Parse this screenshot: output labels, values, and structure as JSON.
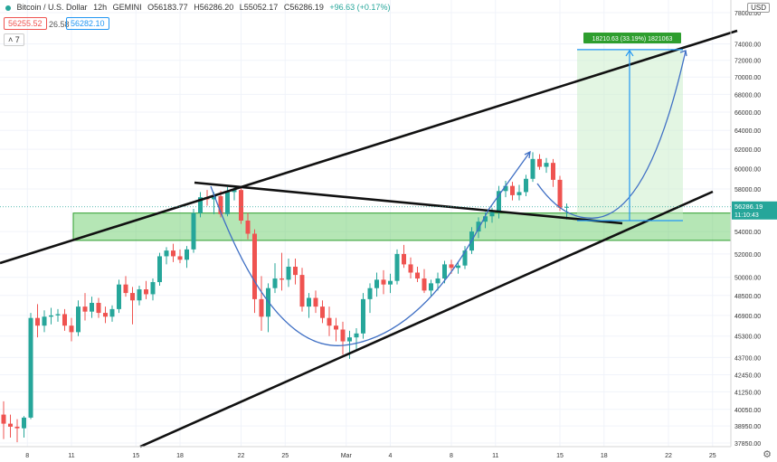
{
  "header": {
    "symbol": "Bitcoin / U.S. Dollar",
    "interval": "12h",
    "exchange": "GEMINI",
    "open": "O56183.77",
    "high": "H56286.20",
    "low": "L55052.17",
    "close": "C56286.19",
    "change": "+96.63 (+0.17%)"
  },
  "order": {
    "sell": "56255.52",
    "spread": "26.58",
    "buy": "56282.10"
  },
  "indicators_badge": "7",
  "currency_badge": "USD",
  "colors": {
    "up": "#26a69a",
    "down": "#ef5350",
    "zone": "#5cc75c",
    "curve": "#3f6fc4",
    "measure": "#2196f3"
  },
  "chart_data": {
    "type": "candlestick",
    "x_ticks": [
      "8",
      "11",
      "15",
      "18",
      "22",
      "25",
      "Mar",
      "4",
      "8",
      "11",
      "15",
      "18",
      "22",
      "25"
    ],
    "y_ticks": [
      "78000.00",
      "74000.00",
      "72000.00",
      "70000.00",
      "68000.00",
      "66000.00",
      "64000.00",
      "62000.00",
      "60000.00",
      "58000.00",
      "54000.00",
      "52000.00",
      "50000.00",
      "48500.00",
      "46900.00",
      "45300.00",
      "43700.00",
      "42450.00",
      "41250.00",
      "40050.00",
      "38950.00",
      "37850.00"
    ],
    "ylim": [
      37400,
      79000
    ],
    "log_scale": true,
    "last_price": "56286.19",
    "countdown": "11:10:43",
    "measure_label": "18210.63 (33.19%) 1821063",
    "candles": [
      {
        "o": 39700,
        "h": 40600,
        "l": 38100,
        "c": 39100
      },
      {
        "o": 39100,
        "h": 39700,
        "l": 38200,
        "c": 38900
      },
      {
        "o": 38900,
        "h": 39400,
        "l": 37900,
        "c": 38800
      },
      {
        "o": 38800,
        "h": 39600,
        "l": 38200,
        "c": 39500
      },
      {
        "o": 39500,
        "h": 47100,
        "l": 39400,
        "c": 46700
      },
      {
        "o": 46700,
        "h": 47800,
        "l": 45200,
        "c": 46100
      },
      {
        "o": 46100,
        "h": 47300,
        "l": 45600,
        "c": 46800
      },
      {
        "o": 46800,
        "h": 47500,
        "l": 46200,
        "c": 46900
      },
      {
        "o": 46900,
        "h": 47400,
        "l": 46400,
        "c": 47000
      },
      {
        "o": 47000,
        "h": 47400,
        "l": 45700,
        "c": 46100
      },
      {
        "o": 46100,
        "h": 46700,
        "l": 44900,
        "c": 45600
      },
      {
        "o": 45600,
        "h": 48100,
        "l": 45300,
        "c": 47600
      },
      {
        "o": 47600,
        "h": 48700,
        "l": 46500,
        "c": 47200
      },
      {
        "o": 47200,
        "h": 48400,
        "l": 46700,
        "c": 47900
      },
      {
        "o": 47900,
        "h": 48300,
        "l": 46700,
        "c": 47100
      },
      {
        "o": 47100,
        "h": 47600,
        "l": 46300,
        "c": 46800
      },
      {
        "o": 46800,
        "h": 47700,
        "l": 46400,
        "c": 47400
      },
      {
        "o": 47400,
        "h": 49800,
        "l": 47100,
        "c": 49400
      },
      {
        "o": 49400,
        "h": 50100,
        "l": 48400,
        "c": 48700
      },
      {
        "o": 48700,
        "h": 49200,
        "l": 46200,
        "c": 48100
      },
      {
        "o": 48100,
        "h": 49300,
        "l": 47700,
        "c": 49000
      },
      {
        "o": 49000,
        "h": 49700,
        "l": 48200,
        "c": 48600
      },
      {
        "o": 48600,
        "h": 49900,
        "l": 48100,
        "c": 49600
      },
      {
        "o": 49600,
        "h": 52100,
        "l": 49300,
        "c": 51800
      },
      {
        "o": 51800,
        "h": 52600,
        "l": 51100,
        "c": 52300
      },
      {
        "o": 52300,
        "h": 52900,
        "l": 51300,
        "c": 51800
      },
      {
        "o": 51800,
        "h": 52400,
        "l": 51200,
        "c": 51500
      },
      {
        "o": 51500,
        "h": 52700,
        "l": 50800,
        "c": 52400
      },
      {
        "o": 52400,
        "h": 56100,
        "l": 52100,
        "c": 55700
      },
      {
        "o": 55700,
        "h": 57700,
        "l": 55300,
        "c": 57200
      },
      {
        "o": 57200,
        "h": 57900,
        "l": 56400,
        "c": 57000
      },
      {
        "o": 57000,
        "h": 57700,
        "l": 55600,
        "c": 57300
      },
      {
        "o": 57300,
        "h": 57800,
        "l": 55300,
        "c": 55600
      },
      {
        "o": 55600,
        "h": 58200,
        "l": 55400,
        "c": 57700
      },
      {
        "o": 57700,
        "h": 58300,
        "l": 56900,
        "c": 57900
      },
      {
        "o": 57900,
        "h": 58200,
        "l": 54700,
        "c": 55000
      },
      {
        "o": 55000,
        "h": 55700,
        "l": 53300,
        "c": 53800
      },
      {
        "o": 53800,
        "h": 54200,
        "l": 47100,
        "c": 48200
      },
      {
        "o": 48200,
        "h": 50100,
        "l": 45700,
        "c": 46800
      },
      {
        "o": 46800,
        "h": 49500,
        "l": 45600,
        "c": 49100
      },
      {
        "o": 49100,
        "h": 51200,
        "l": 48700,
        "c": 49900
      },
      {
        "o": 49900,
        "h": 52100,
        "l": 48900,
        "c": 49800
      },
      {
        "o": 49800,
        "h": 51600,
        "l": 49200,
        "c": 50900
      },
      {
        "o": 50900,
        "h": 51600,
        "l": 49400,
        "c": 50200
      },
      {
        "o": 50200,
        "h": 50800,
        "l": 47200,
        "c": 47600
      },
      {
        "o": 47600,
        "h": 48700,
        "l": 46700,
        "c": 48300
      },
      {
        "o": 48300,
        "h": 48900,
        "l": 47100,
        "c": 47600
      },
      {
        "o": 47600,
        "h": 48100,
        "l": 46300,
        "c": 46700
      },
      {
        "o": 46700,
        "h": 47600,
        "l": 45300,
        "c": 46100
      },
      {
        "o": 46100,
        "h": 46700,
        "l": 44900,
        "c": 45800
      },
      {
        "o": 45800,
        "h": 46400,
        "l": 43900,
        "c": 44900
      },
      {
        "o": 44900,
        "h": 45700,
        "l": 43600,
        "c": 45200
      },
      {
        "o": 45200,
        "h": 45900,
        "l": 44200,
        "c": 45500
      },
      {
        "o": 45500,
        "h": 48700,
        "l": 45100,
        "c": 48200
      },
      {
        "o": 48200,
        "h": 49500,
        "l": 47100,
        "c": 49100
      },
      {
        "o": 49100,
        "h": 50400,
        "l": 48400,
        "c": 49800
      },
      {
        "o": 49800,
        "h": 50600,
        "l": 48600,
        "c": 49400
      },
      {
        "o": 49400,
        "h": 50300,
        "l": 48700,
        "c": 49700
      },
      {
        "o": 49700,
        "h": 52400,
        "l": 49400,
        "c": 52000
      },
      {
        "o": 52000,
        "h": 52800,
        "l": 50800,
        "c": 51100
      },
      {
        "o": 51100,
        "h": 51700,
        "l": 49900,
        "c": 50400
      },
      {
        "o": 50400,
        "h": 50900,
        "l": 49600,
        "c": 49900
      },
      {
        "o": 49900,
        "h": 50700,
        "l": 48700,
        "c": 48900
      },
      {
        "o": 48900,
        "h": 49800,
        "l": 48400,
        "c": 49500
      },
      {
        "o": 49500,
        "h": 50400,
        "l": 48900,
        "c": 49900
      },
      {
        "o": 49900,
        "h": 51400,
        "l": 49500,
        "c": 51100
      },
      {
        "o": 51100,
        "h": 51500,
        "l": 50300,
        "c": 50800
      },
      {
        "o": 50800,
        "h": 51300,
        "l": 50300,
        "c": 51000
      },
      {
        "o": 51000,
        "h": 52700,
        "l": 50700,
        "c": 52300
      },
      {
        "o": 52300,
        "h": 54400,
        "l": 52000,
        "c": 54000
      },
      {
        "o": 54000,
        "h": 55300,
        "l": 53400,
        "c": 54900
      },
      {
        "o": 54900,
        "h": 55800,
        "l": 54300,
        "c": 55400
      },
      {
        "o": 55400,
        "h": 56200,
        "l": 54800,
        "c": 55800
      },
      {
        "o": 55800,
        "h": 58300,
        "l": 55200,
        "c": 57800
      },
      {
        "o": 57800,
        "h": 58800,
        "l": 57200,
        "c": 58300
      },
      {
        "o": 58300,
        "h": 58700,
        "l": 56900,
        "c": 57400
      },
      {
        "o": 57400,
        "h": 58400,
        "l": 56900,
        "c": 57700
      },
      {
        "o": 57700,
        "h": 59400,
        "l": 57300,
        "c": 59000
      },
      {
        "o": 59000,
        "h": 61700,
        "l": 58700,
        "c": 61000
      },
      {
        "o": 61000,
        "h": 61500,
        "l": 59900,
        "c": 60200
      },
      {
        "o": 60200,
        "h": 61100,
        "l": 59600,
        "c": 60600
      },
      {
        "o": 60600,
        "h": 61000,
        "l": 58200,
        "c": 58900
      },
      {
        "o": 58900,
        "h": 59300,
        "l": 55900,
        "c": 56200
      },
      {
        "o": 56200,
        "h": 56600,
        "l": 55100,
        "c": 56286
      }
    ]
  }
}
